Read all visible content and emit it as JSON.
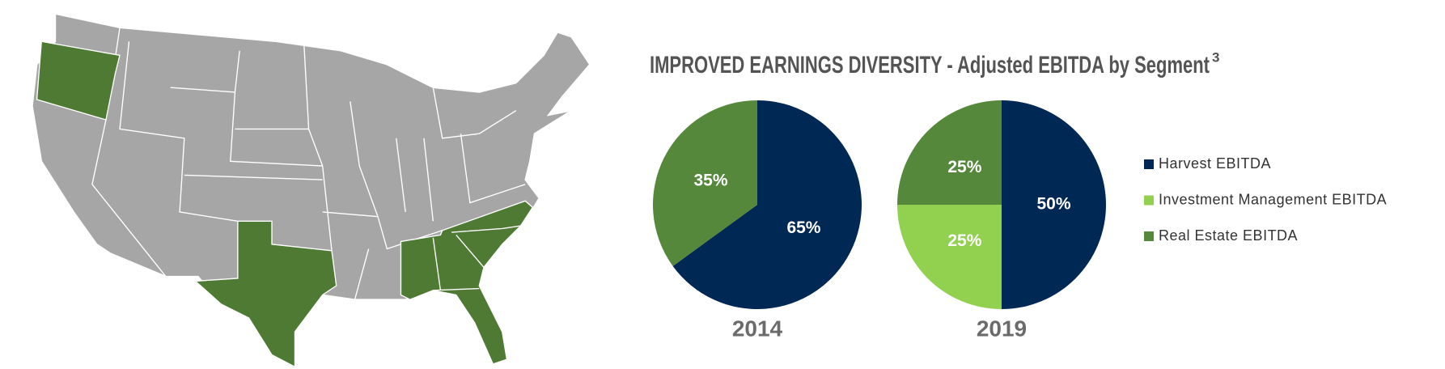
{
  "title": "IMPROVED EARNINGS DIVERSITY - Adjusted EBITDA by Segment",
  "title_superscript": "3",
  "legend": [
    {
      "name": "Harvest EBITDA",
      "color": "#002855"
    },
    {
      "name": "Investment Management EBITDA",
      "color": "#92d050"
    },
    {
      "name": "Real Estate EBITDA",
      "color": "#55883b"
    }
  ],
  "chart_data": [
    {
      "type": "pie",
      "title": "2014",
      "values": [
        65,
        35
      ],
      "value_labels": [
        "65%",
        "35%"
      ],
      "colors": [
        "#002855",
        "#55883b"
      ]
    },
    {
      "type": "pie",
      "title": "2019",
      "values": [
        50,
        25,
        25
      ],
      "value_labels": [
        "50%",
        "25%",
        "25%"
      ],
      "colors": [
        "#002855",
        "#92d050",
        "#55883b"
      ]
    }
  ]
}
